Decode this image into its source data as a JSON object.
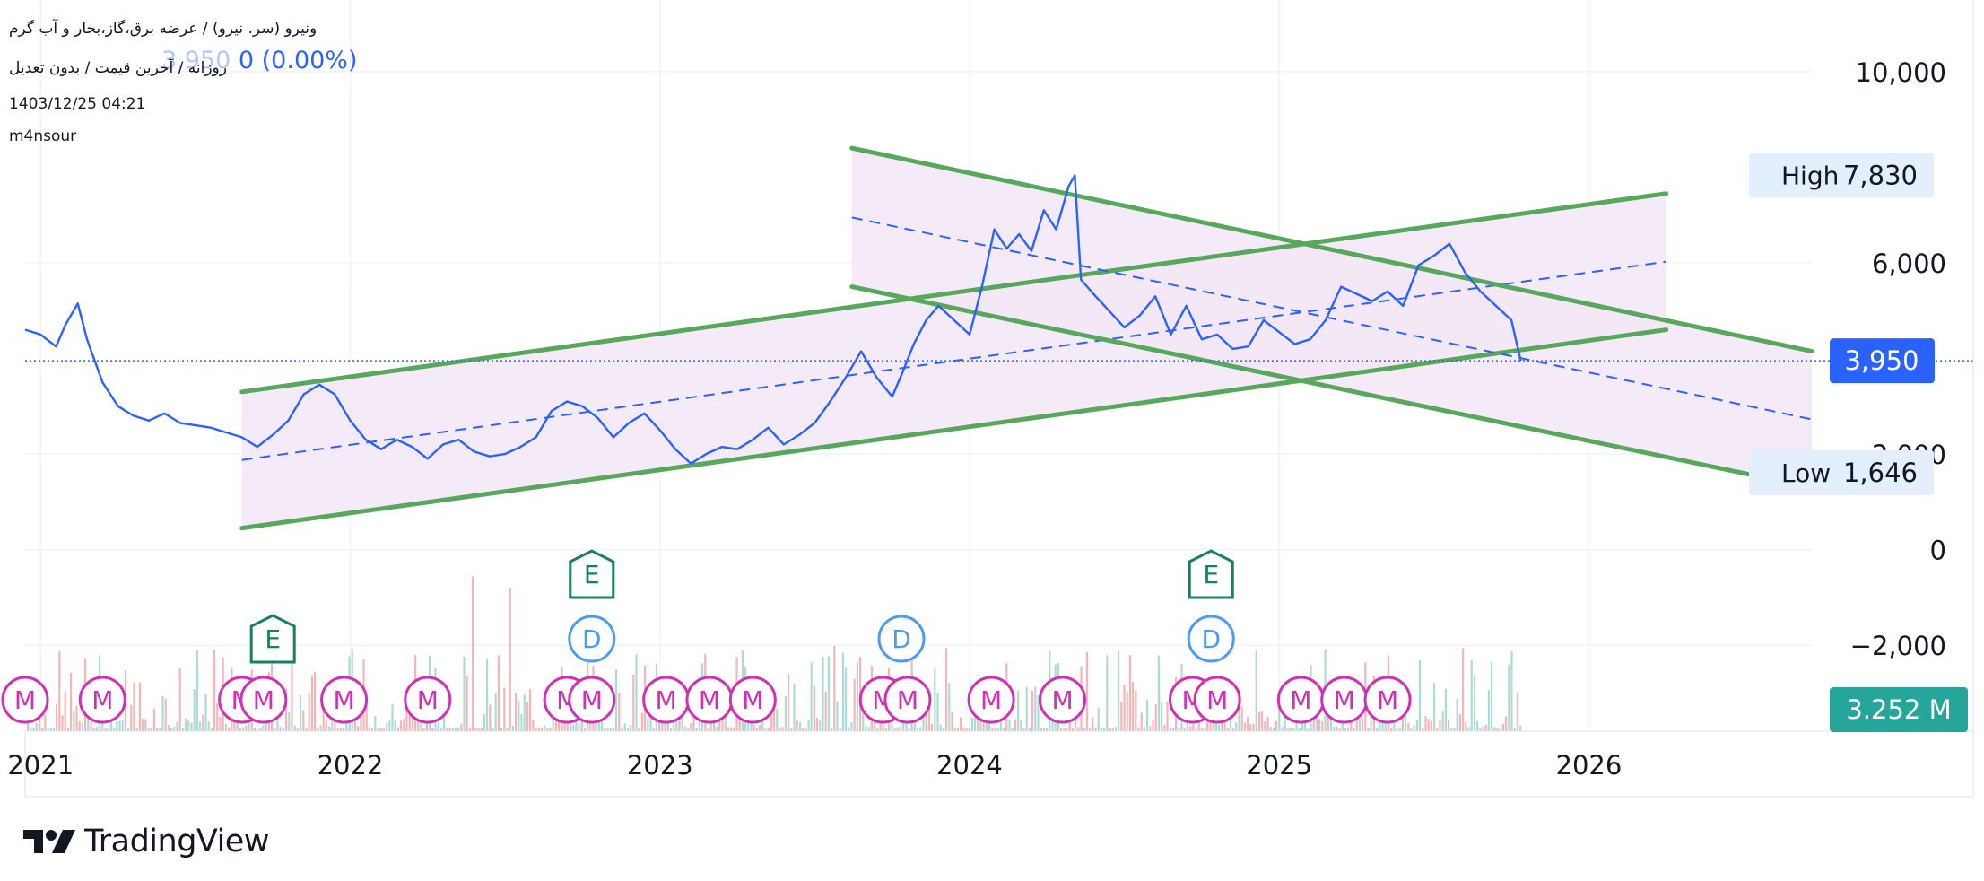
{
  "header": {
    "symbol_line": "ونیرو (سر. نیرو) / عرضه برق،گاز،بخار و آب گرم",
    "price_text": "3,950",
    "change_text": "0 (0.00%)",
    "interval_line": "روزانه / آخرین قیمت / بدون تعدیل",
    "timestamp": "1403/12/25 04:21",
    "author": "m4nsour"
  },
  "branding": {
    "logo_text": "TradingView"
  },
  "chart_data": {
    "type": "line",
    "title": "",
    "xlabel": "",
    "ylabel": "",
    "x_ticks": [
      "2021",
      "2022",
      "2023",
      "2024",
      "2025",
      "2026"
    ],
    "x_range": [
      2020.95,
      2026.72
    ],
    "y_ticks": [
      10000,
      6000,
      2000,
      0,
      -2000
    ],
    "y_tick_labels": [
      "10,000",
      "6,000",
      "2,000",
      "0",
      "−2,000"
    ],
    "ylim": [
      -3800,
      11500
    ],
    "grid": true,
    "price_series": {
      "name": "",
      "color": "#2962ff",
      "points": [
        [
          2020.95,
          4600
        ],
        [
          2021.0,
          4500
        ],
        [
          2021.05,
          4250
        ],
        [
          2021.08,
          4700
        ],
        [
          2021.12,
          5150
        ],
        [
          2021.15,
          4400
        ],
        [
          2021.2,
          3500
        ],
        [
          2021.25,
          3000
        ],
        [
          2021.3,
          2800
        ],
        [
          2021.35,
          2700
        ],
        [
          2021.4,
          2850
        ],
        [
          2021.45,
          2650
        ],
        [
          2021.5,
          2600
        ],
        [
          2021.55,
          2550
        ],
        [
          2021.6,
          2450
        ],
        [
          2021.65,
          2350
        ],
        [
          2021.7,
          2150
        ],
        [
          2021.75,
          2400
        ],
        [
          2021.8,
          2700
        ],
        [
          2021.85,
          3250
        ],
        [
          2021.9,
          3450
        ],
        [
          2021.95,
          3250
        ],
        [
          2022.0,
          2700
        ],
        [
          2022.05,
          2300
        ],
        [
          2022.1,
          2100
        ],
        [
          2022.15,
          2300
        ],
        [
          2022.2,
          2150
        ],
        [
          2022.25,
          1900
        ],
        [
          2022.3,
          2200
        ],
        [
          2022.35,
          2300
        ],
        [
          2022.4,
          2050
        ],
        [
          2022.45,
          1950
        ],
        [
          2022.5,
          2000
        ],
        [
          2022.55,
          2150
        ],
        [
          2022.6,
          2350
        ],
        [
          2022.65,
          2900
        ],
        [
          2022.7,
          3100
        ],
        [
          2022.75,
          3000
        ],
        [
          2022.8,
          2750
        ],
        [
          2022.85,
          2350
        ],
        [
          2022.9,
          2650
        ],
        [
          2022.95,
          2850
        ],
        [
          2023.0,
          2500
        ],
        [
          2023.05,
          2100
        ],
        [
          2023.1,
          1800
        ],
        [
          2023.15,
          2000
        ],
        [
          2023.2,
          2150
        ],
        [
          2023.25,
          2100
        ],
        [
          2023.3,
          2300
        ],
        [
          2023.35,
          2550
        ],
        [
          2023.4,
          2200
        ],
        [
          2023.45,
          2400
        ],
        [
          2023.5,
          2650
        ],
        [
          2023.55,
          3100
        ],
        [
          2023.6,
          3600
        ],
        [
          2023.65,
          4150
        ],
        [
          2023.7,
          3600
        ],
        [
          2023.75,
          3200
        ],
        [
          2023.78,
          3650
        ],
        [
          2023.82,
          4300
        ],
        [
          2023.86,
          4800
        ],
        [
          2023.9,
          5100
        ],
        [
          2023.95,
          4800
        ],
        [
          2024.0,
          4500
        ],
        [
          2024.04,
          5500
        ],
        [
          2024.08,
          6700
        ],
        [
          2024.12,
          6300
        ],
        [
          2024.16,
          6600
        ],
        [
          2024.2,
          6250
        ],
        [
          2024.24,
          7100
        ],
        [
          2024.28,
          6700
        ],
        [
          2024.32,
          7600
        ],
        [
          2024.34,
          7830
        ],
        [
          2024.36,
          5650
        ],
        [
          2024.4,
          5350
        ],
        [
          2024.45,
          5000
        ],
        [
          2024.5,
          4650
        ],
        [
          2024.55,
          4900
        ],
        [
          2024.6,
          5300
        ],
        [
          2024.65,
          4500
        ],
        [
          2024.7,
          5100
        ],
        [
          2024.75,
          4400
        ],
        [
          2024.8,
          4500
        ],
        [
          2024.85,
          4200
        ],
        [
          2024.9,
          4250
        ],
        [
          2024.95,
          4800
        ],
        [
          2025.0,
          4550
        ],
        [
          2025.05,
          4300
        ],
        [
          2025.1,
          4400
        ],
        [
          2025.15,
          4800
        ],
        [
          2025.2,
          5500
        ],
        [
          2025.25,
          5350
        ],
        [
          2025.3,
          5200
        ],
        [
          2025.35,
          5400
        ],
        [
          2025.4,
          5100
        ],
        [
          2025.45,
          5950
        ],
        [
          2025.5,
          6150
        ],
        [
          2025.55,
          6400
        ],
        [
          2025.6,
          5800
        ],
        [
          2025.65,
          5400
        ],
        [
          2025.7,
          5100
        ],
        [
          2025.75,
          4800
        ],
        [
          2025.78,
          3950
        ]
      ]
    },
    "current_price": {
      "value": 3950,
      "label": "3,950",
      "color": "#2962ff"
    },
    "high": {
      "label": "High",
      "value": 7830,
      "value_label": "7,830"
    },
    "low": {
      "label": "Low",
      "value": 1646,
      "value_label": "1,646"
    },
    "volume_badge": {
      "label": "3.252 M",
      "color": "#26a69a"
    },
    "channels": [
      {
        "name": "",
        "shading": "#f3e8f7",
        "upper": [
          [
            2021.65,
            3300
          ],
          [
            2026.25,
            7450
          ]
        ],
        "lower": [
          [
            2021.65,
            450
          ],
          [
            2026.25,
            4600
          ]
        ],
        "mid": [
          [
            2021.65,
            1875
          ],
          [
            2026.25,
            6025
          ]
        ]
      },
      {
        "name": "",
        "shading": "#f3e8f7",
        "upper": [
          [
            2023.62,
            8400
          ],
          [
            2026.72,
            4150
          ]
        ],
        "lower": [
          [
            2023.62,
            5500
          ],
          [
            2026.72,
            1300
          ]
        ],
        "mid": [
          [
            2023.62,
            6950
          ],
          [
            2026.72,
            2725
          ]
        ]
      }
    ],
    "line_color": "#58a85c",
    "mid_color": "#2962ff",
    "event_markers": [
      {
        "label": "E",
        "type": "earnings",
        "x": 2021.75,
        "tier": 3
      },
      {
        "label": "E",
        "type": "earnings",
        "x": 2022.78,
        "tier": 2
      },
      {
        "label": "E",
        "type": "earnings",
        "x": 2024.78,
        "tier": 2
      },
      {
        "label": "D",
        "type": "dividend",
        "x": 2022.78,
        "tier": 1
      },
      {
        "label": "D",
        "type": "dividend",
        "x": 2023.78,
        "tier": 1
      },
      {
        "label": "D",
        "type": "dividend",
        "x": 2024.78,
        "tier": 1
      },
      {
        "label": "M",
        "type": "meeting",
        "x": 2020.95,
        "tier": 0
      },
      {
        "label": "M",
        "type": "meeting",
        "x": 2021.2,
        "tier": 0
      },
      {
        "label": "M",
        "type": "meeting",
        "x": 2021.65,
        "tier": 0
      },
      {
        "label": "M",
        "type": "meeting",
        "x": 2021.72,
        "tier": 0
      },
      {
        "label": "M",
        "type": "meeting",
        "x": 2021.98,
        "tier": 0
      },
      {
        "label": "M",
        "type": "meeting",
        "x": 2022.25,
        "tier": 0
      },
      {
        "label": "M",
        "type": "meeting",
        "x": 2022.7,
        "tier": 0
      },
      {
        "label": "M",
        "type": "meeting",
        "x": 2022.78,
        "tier": 0
      },
      {
        "label": "M",
        "type": "meeting",
        "x": 2023.02,
        "tier": 0
      },
      {
        "label": "M",
        "type": "meeting",
        "x": 2023.16,
        "tier": 0
      },
      {
        "label": "M",
        "type": "meeting",
        "x": 2023.3,
        "tier": 0
      },
      {
        "label": "M",
        "type": "meeting",
        "x": 2023.72,
        "tier": 0
      },
      {
        "label": "M",
        "type": "meeting",
        "x": 2023.8,
        "tier": 0
      },
      {
        "label": "M",
        "type": "meeting",
        "x": 2024.07,
        "tier": 0
      },
      {
        "label": "M",
        "type": "meeting",
        "x": 2024.3,
        "tier": 0
      },
      {
        "label": "M",
        "type": "meeting",
        "x": 2024.72,
        "tier": 0
      },
      {
        "label": "M",
        "type": "meeting",
        "x": 2024.8,
        "tier": 0
      },
      {
        "label": "M",
        "type": "meeting",
        "x": 2025.07,
        "tier": 0
      },
      {
        "label": "M",
        "type": "meeting",
        "x": 2025.21,
        "tier": 0
      },
      {
        "label": "M",
        "type": "meeting",
        "x": 2025.35,
        "tier": 0
      }
    ],
    "marker_colors": {
      "earnings": "#17805f",
      "dividend": "#4a9cf0",
      "meeting": "#d12fb5"
    }
  }
}
